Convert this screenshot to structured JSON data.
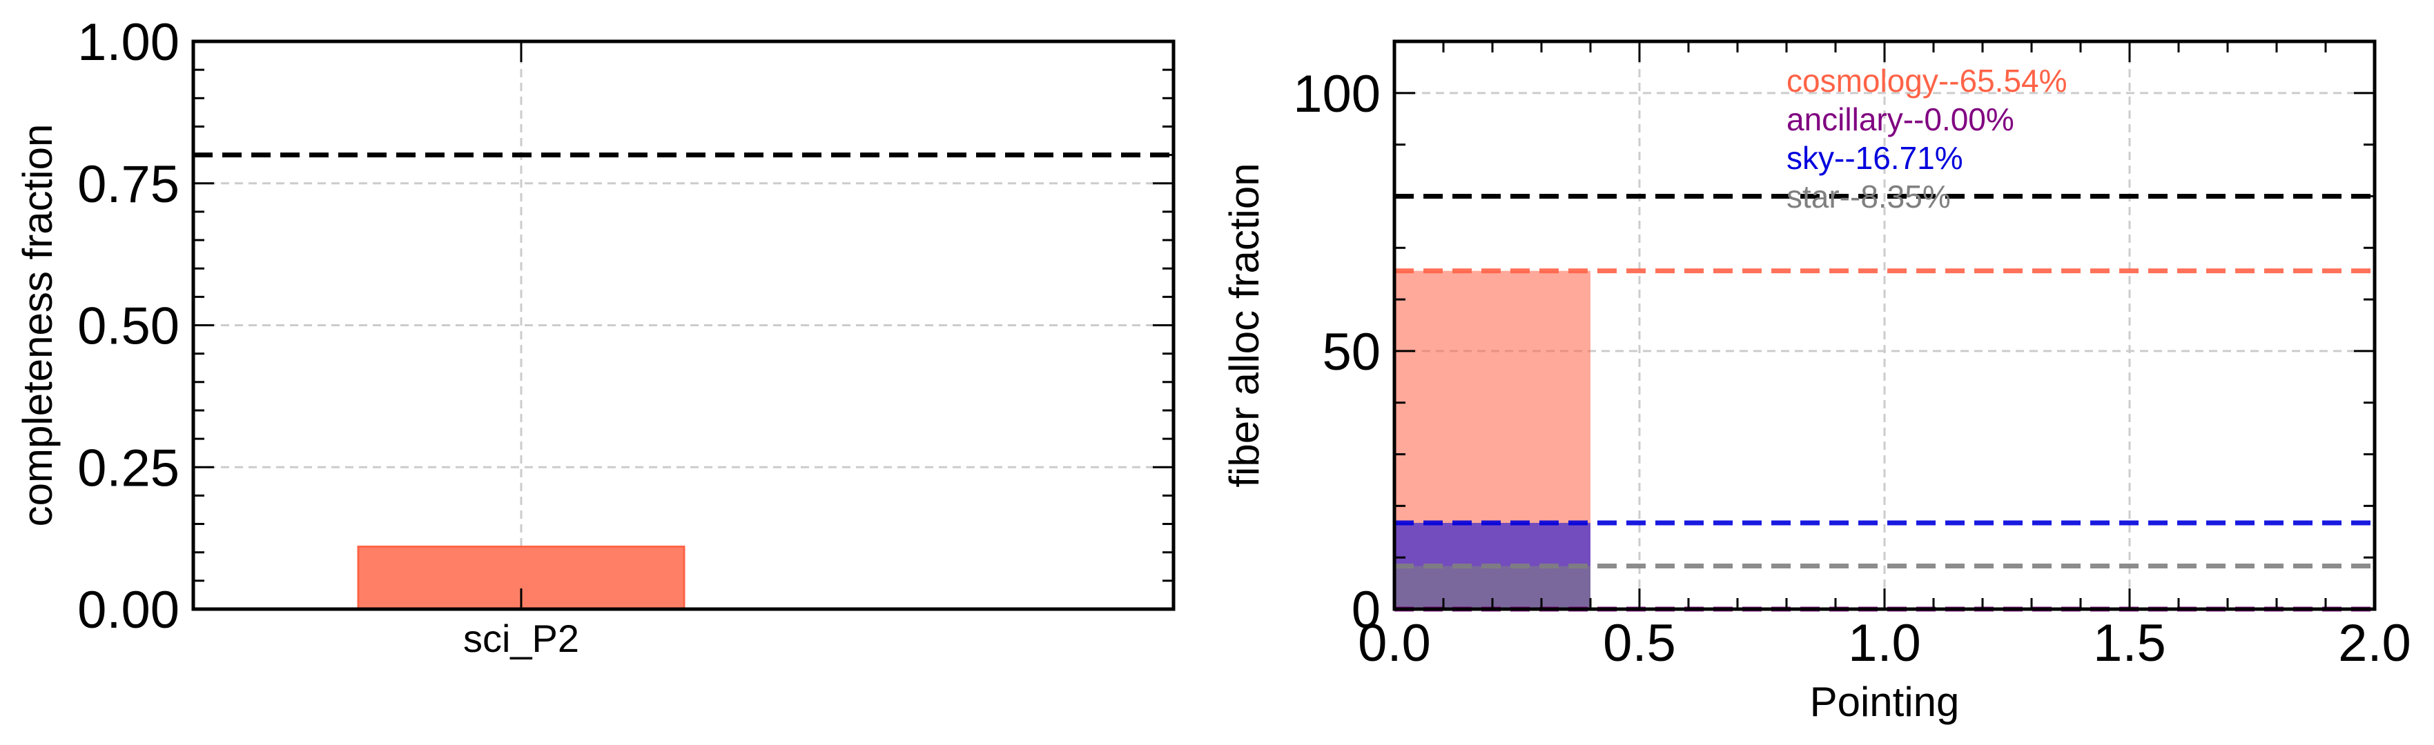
{
  "chart_data": [
    {
      "type": "bar",
      "title": "",
      "xlabel": "",
      "ylabel": "completeness fraction",
      "ylim": [
        0,
        1.0
      ],
      "yticks": [
        "0.00",
        "0.25",
        "0.50",
        "0.75",
        "1.00"
      ],
      "categories": [
        "sci_P2"
      ],
      "values": [
        0.11
      ],
      "bar_color": "#ff7f66",
      "reference_line": {
        "value": 0.8,
        "color": "#000000",
        "style": "dashed"
      },
      "grid": true
    },
    {
      "type": "bar",
      "title": "",
      "xlabel": "Pointing",
      "ylabel": "fiber alloc fraction",
      "xlim": [
        0.0,
        2.0
      ],
      "ylim": [
        0,
        110
      ],
      "xticks": [
        "0.0",
        "0.5",
        "1.0",
        "1.5",
        "2.0"
      ],
      "yticks": [
        "0",
        "50",
        "100"
      ],
      "series": [
        {
          "name": "cosmology",
          "value": 65.54,
          "label": "cosmology--65.54%",
          "color": "#ff6347"
        },
        {
          "name": "ancillary",
          "value": 0.0,
          "label": "ancillary--0.00%",
          "color": "#800080"
        },
        {
          "name": "sky",
          "value": 16.71,
          "label": "sky--16.71%",
          "color": "#0000dd"
        },
        {
          "name": "star",
          "value": 8.35,
          "label": "star--8.35%",
          "color": "#808080"
        }
      ],
      "bar_x_range": [
        0.0,
        0.4
      ],
      "reference_line": {
        "value": 80,
        "color": "#000000",
        "style": "dashed"
      },
      "legend_position": "top",
      "grid": true
    }
  ]
}
